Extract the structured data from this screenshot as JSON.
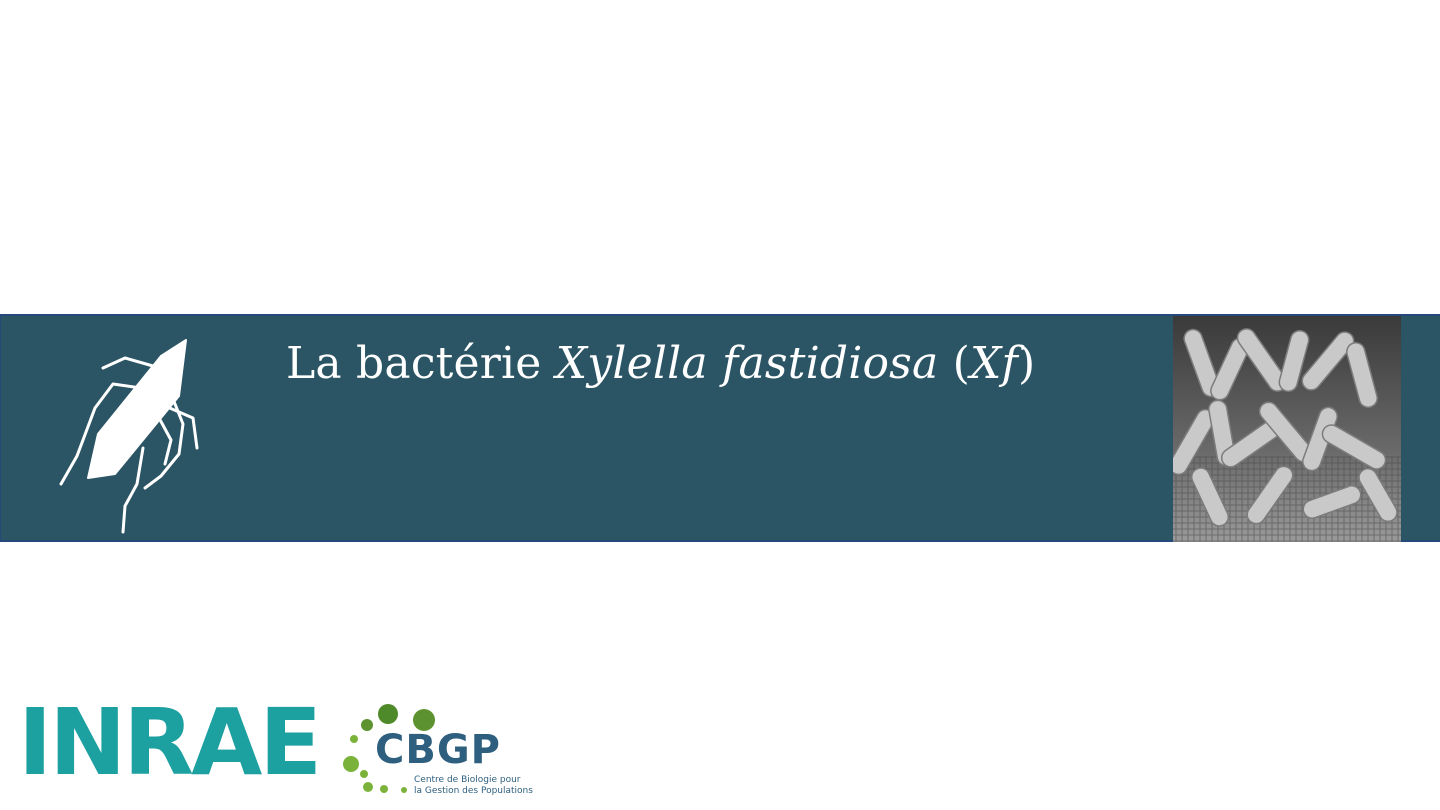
{
  "banner": {
    "title_prefix": "La bactérie ",
    "title_species": "Xylella fastidiosa",
    "title_open": " (",
    "title_abbr": "Xf",
    "title_close": ")",
    "icon": "insect-silhouette-icon",
    "photo": "bacteria-micrograph-image"
  },
  "logos": {
    "inrae": "INRAE",
    "cbgp": "CBGP",
    "cbgp_tagline_line1": "Centre de Biologie pour",
    "cbgp_tagline_line2": "la Gestion des Populations"
  },
  "colors": {
    "banner": "#2b5564",
    "inrae": "#1ca0a0",
    "cbgp": "#2e5f7e",
    "cbgp_dots": "#7bb33a"
  }
}
